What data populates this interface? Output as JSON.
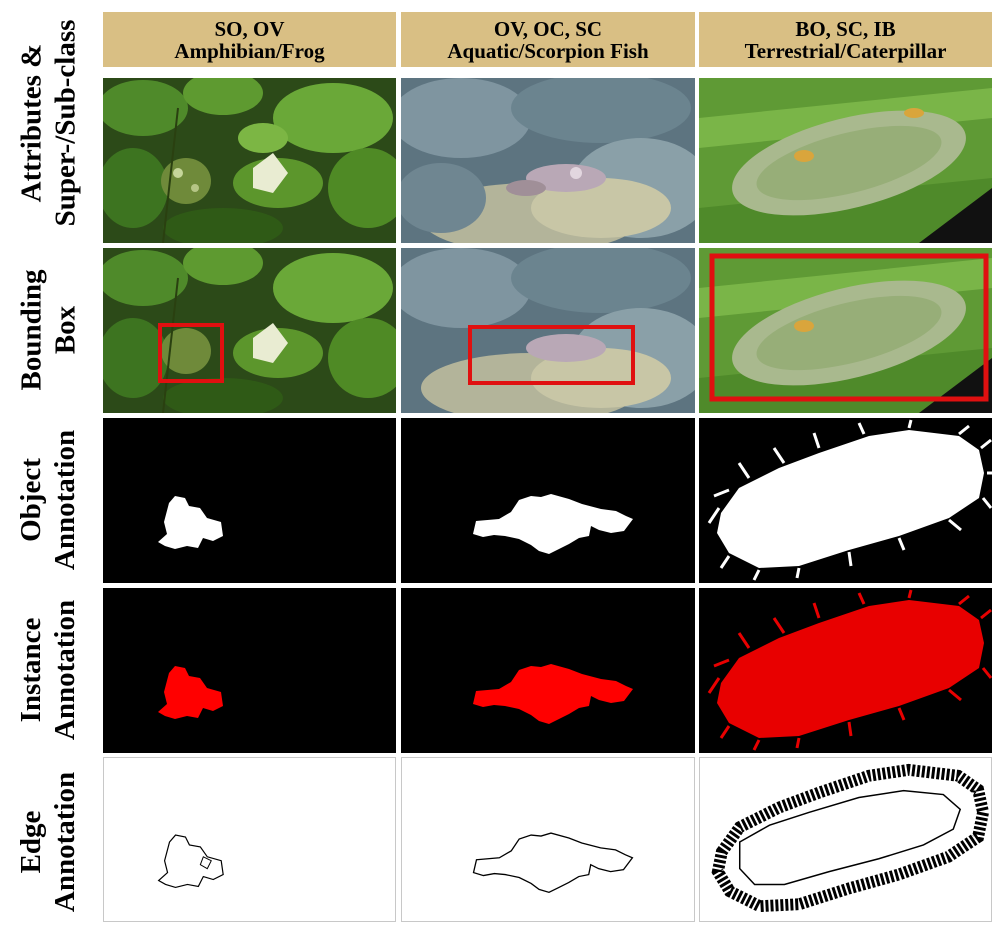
{
  "row_labels": {
    "attributes_line1": "Attributes &",
    "attributes_line2": "Super-/Sub-class",
    "bbox_line1": "Bounding",
    "bbox_line2": "Box",
    "object_line1": "Object",
    "object_line2": "Annotation",
    "instance_line1": "Instance",
    "instance_line2": "Annotation",
    "edge_line1": "Edge",
    "edge_line2": "Annotation"
  },
  "columns": [
    {
      "attributes": "SO, OV",
      "class": "Amphibian/Frog"
    },
    {
      "attributes": "OV, OC, SC",
      "class": "Aquatic/Scorpion Fish"
    },
    {
      "attributes": "BO, SC, IB",
      "class": "Terrestrial/Caterpillar"
    }
  ],
  "colors": {
    "header_bg": "#d9bf84",
    "bbox": "#e01010",
    "instance_fill": "#ff0000",
    "mask_bg": "#000000",
    "mask_fg": "#ffffff"
  }
}
